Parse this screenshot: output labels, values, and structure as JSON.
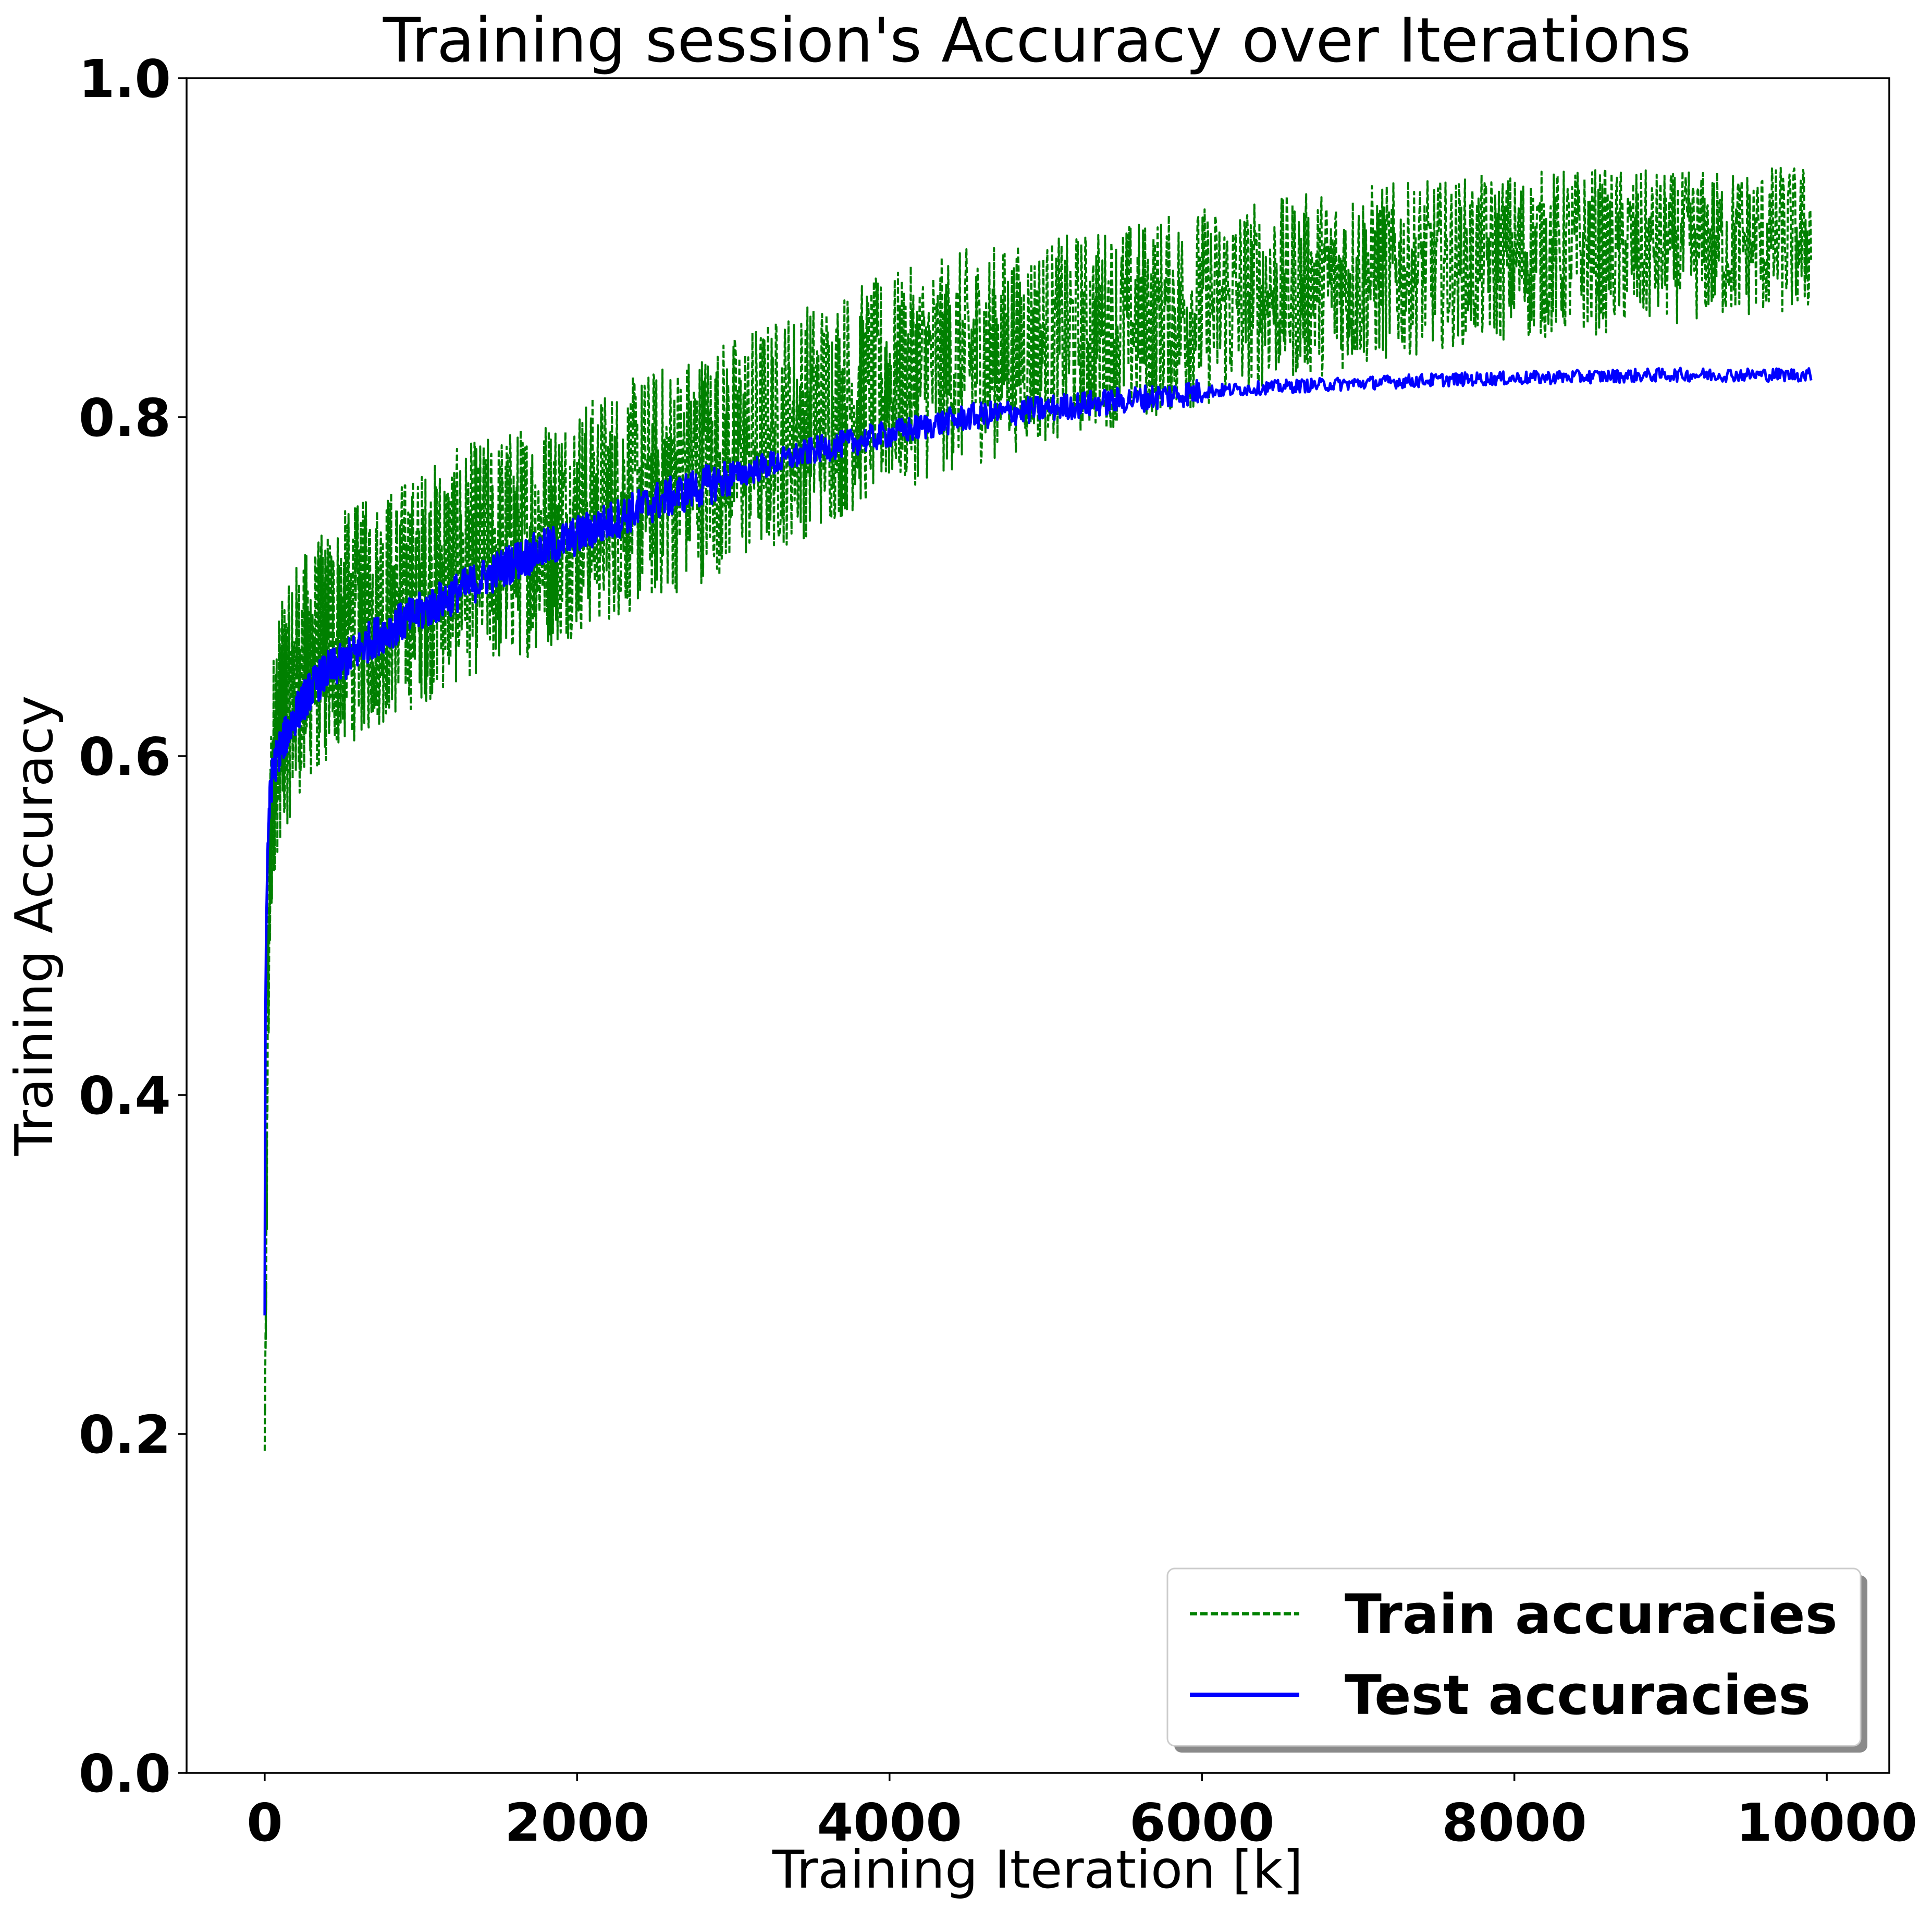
{
  "chart_data": {
    "type": "line",
    "title": "Training session's Accuracy over Iterations",
    "xlabel": "Training Iteration [k]",
    "ylabel": "Training Accuracy",
    "xlim": [
      -500,
      10400
    ],
    "ylim": [
      0.0,
      1.0
    ],
    "xticks": [
      0,
      2000,
      4000,
      6000,
      8000,
      10000
    ],
    "xtick_labels": [
      "0",
      "2000",
      "4000",
      "6000",
      "8000",
      "10000"
    ],
    "yticks": [
      0.0,
      0.2,
      0.4,
      0.6,
      0.8,
      1.0
    ],
    "ytick_labels": [
      "0.0",
      "0.2",
      "0.4",
      "0.6",
      "0.8",
      "1.0"
    ],
    "grid": false,
    "legend_position": "bottom-right",
    "series": [
      {
        "name": "Train accuracies",
        "color": "#008000",
        "style": "dashed",
        "x": [
          0,
          10,
          20,
          40,
          60,
          80,
          100,
          150,
          200,
          300,
          400,
          500,
          700,
          1000,
          1300,
          1600,
          2000,
          2500,
          3000,
          3500,
          4000,
          4500,
          5000,
          5500,
          6000,
          6500,
          7000,
          7500,
          8000,
          8500,
          9000,
          9500,
          9900
        ],
        "y": [
          0.19,
          0.3,
          0.45,
          0.56,
          0.6,
          0.61,
          0.62,
          0.63,
          0.645,
          0.655,
          0.665,
          0.675,
          0.685,
          0.7,
          0.715,
          0.725,
          0.74,
          0.76,
          0.78,
          0.8,
          0.82,
          0.835,
          0.845,
          0.855,
          0.865,
          0.875,
          0.883,
          0.89,
          0.895,
          0.898,
          0.9,
          0.903,
          0.905
        ],
        "band_halfwidth": [
          0.0,
          0.04,
          0.06,
          0.07,
          0.07,
          0.07,
          0.07,
          0.07,
          0.07,
          0.07,
          0.07,
          0.07,
          0.07,
          0.07,
          0.07,
          0.07,
          0.07,
          0.07,
          0.07,
          0.07,
          0.065,
          0.065,
          0.06,
          0.06,
          0.06,
          0.055,
          0.055,
          0.05,
          0.05,
          0.05,
          0.045,
          0.045,
          0.045
        ]
      },
      {
        "name": "Test accuracies",
        "color": "#0000ff",
        "style": "solid",
        "x": [
          0,
          5,
          10,
          20,
          30,
          50,
          80,
          100,
          150,
          200,
          300,
          400,
          500,
          700,
          1000,
          1300,
          1600,
          2000,
          2500,
          3000,
          3500,
          4000,
          4500,
          5000,
          5500,
          6000,
          6500,
          7000,
          7500,
          8000,
          8500,
          9000,
          9500,
          9900
        ],
        "y": [
          0.27,
          0.45,
          0.5,
          0.55,
          0.57,
          0.59,
          0.6,
          0.605,
          0.615,
          0.625,
          0.64,
          0.65,
          0.655,
          0.67,
          0.685,
          0.7,
          0.715,
          0.73,
          0.75,
          0.765,
          0.78,
          0.79,
          0.8,
          0.805,
          0.81,
          0.815,
          0.818,
          0.82,
          0.822,
          0.823,
          0.824,
          0.825,
          0.825,
          0.825
        ]
      }
    ]
  }
}
